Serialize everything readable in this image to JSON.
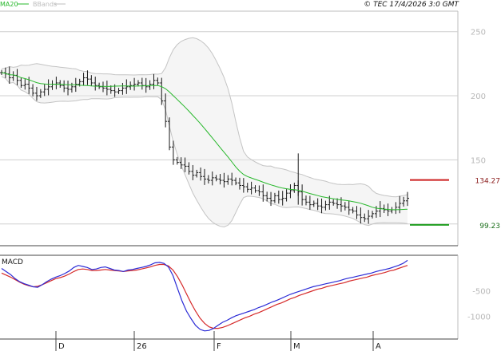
{
  "header": {
    "legend": [
      {
        "label": "MA20",
        "color": "#27b82b"
      },
      {
        "label": "BBands",
        "color": "#bdbdbd"
      }
    ],
    "copyright": "© TEC 17/4/2026 3:0 GMT"
  },
  "colors": {
    "price_bar": "#1a1a1a",
    "ma20": "#27b82b",
    "bbands": "#c4c4c4",
    "bband_fill": "#e8e8e8",
    "resistance": "#cc1f1f",
    "support": "#1f9e1f",
    "macd": "#2b2bd6",
    "signal": "#d62b2b",
    "grid": "#cfcfcf"
  },
  "chart_data": [
    {
      "type": "ohlc",
      "title": "",
      "ylim": [
        83,
        266
      ],
      "y_ticks": [
        100,
        150,
        200,
        250
      ],
      "y_tick_labels": [
        "",
        "150",
        "200",
        "250"
      ],
      "x_labels": [
        "D",
        "26",
        "F",
        "M",
        "A"
      ],
      "grid": true,
      "ma20_label": "MA20",
      "bbands_label": "BBands",
      "levels": [
        {
          "name": "resistance",
          "value": 134.27,
          "label": "134.27"
        },
        {
          "name": "support",
          "value": 99.23,
          "label": "99.23"
        }
      ],
      "close": [
        218,
        217,
        214,
        216,
        212,
        208,
        209,
        206,
        202,
        200,
        203,
        205,
        207,
        209,
        210,
        208,
        206,
        205,
        207,
        209,
        211,
        214,
        213,
        210,
        208,
        207,
        206,
        205,
        204,
        203,
        204,
        206,
        207,
        208,
        209,
        210,
        208,
        207,
        209,
        212,
        210,
        196,
        180,
        160,
        150,
        148,
        146,
        145,
        141,
        138,
        140,
        137,
        135,
        134,
        136,
        135,
        134,
        133,
        135,
        134,
        132,
        130,
        129,
        127,
        128,
        126,
        125,
        122,
        120,
        118,
        122,
        119,
        120,
        124,
        126,
        130,
        125,
        119,
        117,
        115,
        116,
        114,
        113,
        115,
        117,
        116,
        115,
        114,
        113,
        111,
        110,
        107,
        105,
        104,
        106,
        108,
        110,
        112,
        111,
        110,
        111,
        113,
        116,
        118,
        120
      ]
    },
    {
      "type": "line",
      "title": "MACD",
      "ylim": [
        -1450,
        200
      ],
      "y_ticks": [
        -500,
        -1000
      ],
      "y_tick_labels": [
        "-500",
        "-1000"
      ],
      "series": [
        {
          "name": "",
          "role": "macd",
          "values": [
            -60,
            -120,
            -180,
            -260,
            -320,
            -360,
            -390,
            -420,
            -430,
            -380,
            -320,
            -270,
            -230,
            -200,
            -160,
            -110,
            -40,
            0,
            -20,
            -40,
            -80,
            -70,
            -40,
            -30,
            -60,
            -90,
            -100,
            -120,
            -90,
            -80,
            -60,
            -40,
            -20,
            10,
            50,
            60,
            40,
            -30,
            -200,
            -450,
            -700,
            -900,
            -1050,
            -1180,
            -1260,
            -1290,
            -1280,
            -1240,
            -1180,
            -1120,
            -1080,
            -1030,
            -990,
            -960,
            -930,
            -900,
            -870,
            -830,
            -800,
            -760,
            -720,
            -690,
            -650,
            -610,
            -570,
            -540,
            -510,
            -480,
            -450,
            -420,
            -400,
            -380,
            -360,
            -340,
            -320,
            -300,
            -270,
            -250,
            -230,
            -210,
            -190,
            -170,
            -150,
            -120,
            -100,
            -80,
            -60,
            -30,
            0,
            40,
            100
          ]
        },
        {
          "name": "",
          "role": "signal",
          "values": [
            -150,
            -190,
            -230,
            -280,
            -330,
            -370,
            -400,
            -420,
            -410,
            -380,
            -340,
            -300,
            -260,
            -240,
            -210,
            -170,
            -120,
            -80,
            -70,
            -80,
            -100,
            -100,
            -90,
            -80,
            -90,
            -100,
            -110,
            -120,
            -110,
            -100,
            -90,
            -70,
            -50,
            -30,
            0,
            20,
            20,
            -10,
            -90,
            -220,
            -380,
            -560,
            -740,
            -900,
            -1040,
            -1140,
            -1210,
            -1240,
            -1240,
            -1220,
            -1190,
            -1150,
            -1110,
            -1070,
            -1030,
            -1000,
            -960,
            -930,
            -890,
            -850,
            -810,
            -770,
            -740,
            -700,
            -660,
            -630,
            -590,
            -560,
            -530,
            -500,
            -470,
            -450,
            -420,
            -400,
            -380,
            -360,
            -340,
            -310,
            -290,
            -270,
            -250,
            -230,
            -200,
            -180,
            -160,
            -140,
            -110,
            -90,
            -60,
            -30,
            0
          ]
        }
      ]
    }
  ]
}
